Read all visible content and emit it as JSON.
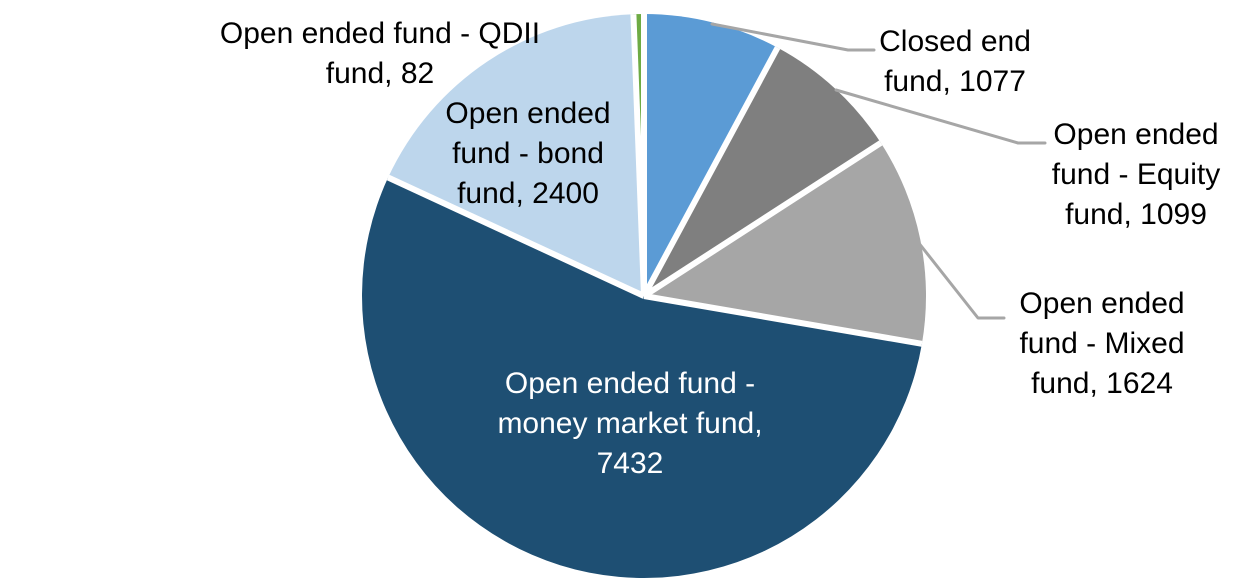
{
  "figure": {
    "background": "#FFFFFF"
  },
  "chart_data": {
    "type": "pie",
    "title": "",
    "total": 13714,
    "start_angle_deg": 0,
    "direction": "clockwise",
    "grid": false,
    "legend": "none",
    "separator_color": "#FFFFFF",
    "leader_line_color": "#A6A6A6",
    "slices": [
      {
        "id": "closed_end",
        "label": "Closed end fund",
        "value": 1077,
        "color": "#5B9BD5"
      },
      {
        "id": "equity",
        "label": "Open ended fund - Equity fund",
        "value": 1099,
        "color": "#7F7F7F"
      },
      {
        "id": "mixed",
        "label": "Open ended fund - Mixed fund",
        "value": 1624,
        "color": "#A6A6A6"
      },
      {
        "id": "money_market",
        "label": "Open ended fund - money market fund",
        "value": 7432,
        "color": "#1E4F73"
      },
      {
        "id": "bond",
        "label": "Open ended fund - bond fund",
        "value": 2400,
        "color": "#BDD6EC"
      },
      {
        "id": "qdii",
        "label": "Open ended fund - QDII fund",
        "value": 82,
        "color": "#6EAB44"
      }
    ]
  },
  "labels": {
    "qdii": {
      "text": "Open ended fund - QDII fund, 82",
      "lines": [
        "Open ended fund - QDII",
        "fund, 82"
      ],
      "color": "#000000"
    },
    "bond": {
      "text": "Open ended fund - bond fund, 2400",
      "lines": [
        "Open ended",
        "fund - bond",
        "fund, 2400"
      ],
      "color": "#000000"
    },
    "money_market": {
      "text": "Open ended fund - money market fund, 7432",
      "lines": [
        "Open ended fund -",
        "money market fund,",
        "7432"
      ],
      "color": "#FFFFFF"
    },
    "closed_end": {
      "text": "Closed end fund, 1077",
      "lines": [
        "Closed end",
        "fund, 1077"
      ],
      "color": "#000000"
    },
    "equity": {
      "text": "Open ended fund - Equity fund, 1099",
      "lines": [
        "Open ended",
        "fund - Equity",
        "fund, 1099"
      ],
      "color": "#000000"
    },
    "mixed": {
      "text": "Open ended fund - Mixed fund, 1624",
      "lines": [
        "Open ended",
        "fund - Mixed",
        "fund, 1624"
      ],
      "color": "#000000"
    }
  }
}
